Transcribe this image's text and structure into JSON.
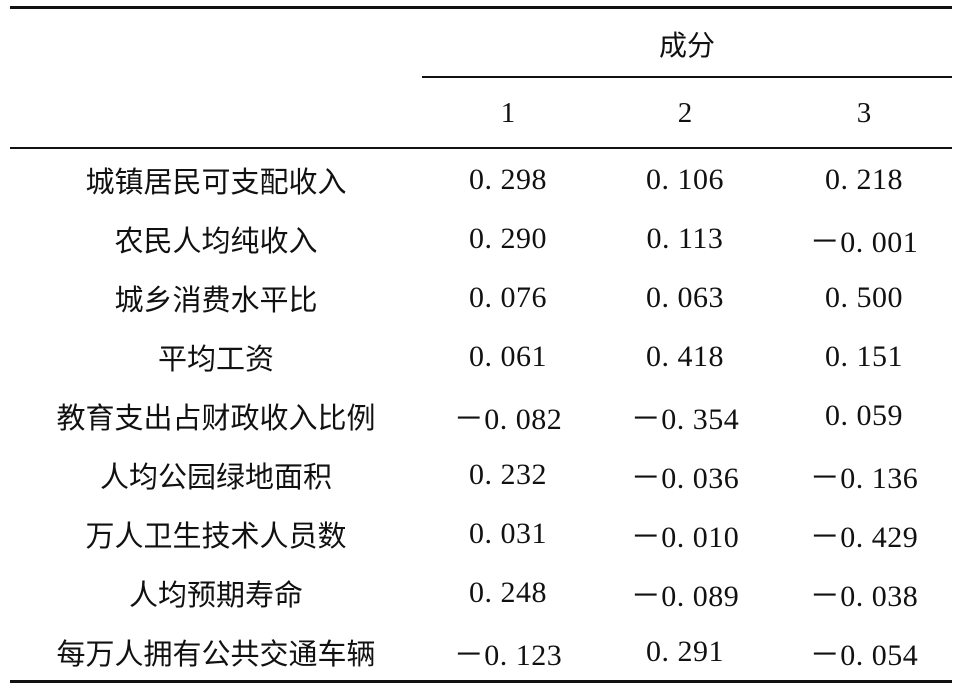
{
  "table": {
    "group_header": "成分",
    "columns": [
      "1",
      "2",
      "3"
    ],
    "rows": [
      {
        "label": "城镇居民可支配收入",
        "values": [
          "0. 298",
          "0. 106",
          "0. 218"
        ]
      },
      {
        "label": "农民人均纯收入",
        "values": [
          "0. 290",
          "0. 113",
          "－0. 001"
        ]
      },
      {
        "label": "城乡消费水平比",
        "values": [
          "0. 076",
          "0. 063",
          "0. 500"
        ]
      },
      {
        "label": "平均工资",
        "values": [
          "0. 061",
          "0. 418",
          "0. 151"
        ]
      },
      {
        "label": "教育支出占财政收入比例",
        "values": [
          "－0. 082",
          "－0. 354",
          "0. 059"
        ]
      },
      {
        "label": "人均公园绿地面积",
        "values": [
          "0. 232",
          "－0. 036",
          "－0. 136"
        ]
      },
      {
        "label": "万人卫生技术人员数",
        "values": [
          "0. 031",
          "－0. 010",
          "－0. 429"
        ]
      },
      {
        "label": "人均预期寿命",
        "values": [
          "0. 248",
          "－0. 089",
          "－0. 038"
        ]
      },
      {
        "label": "每万人拥有公共交通车辆",
        "values": [
          "－0. 123",
          "0. 291",
          "－0. 054"
        ]
      }
    ]
  }
}
